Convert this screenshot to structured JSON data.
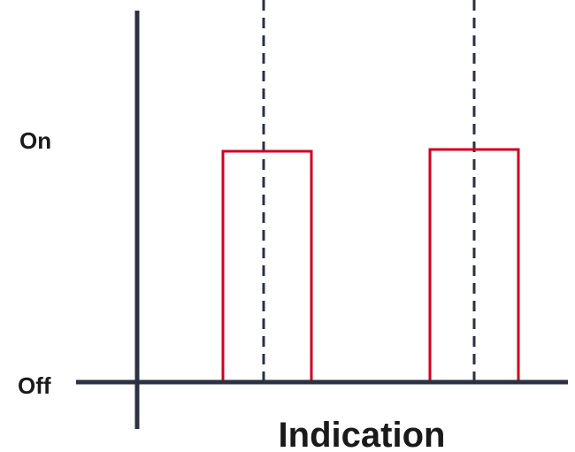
{
  "diagram": {
    "y_high_label": "On",
    "y_low_label": "Off",
    "x_label": "Indication"
  },
  "colors": {
    "axis": "#2b3142",
    "pulse": "#d0021b",
    "marker": "#2b3142",
    "text": "#1a1a1a"
  },
  "chart_data": {
    "type": "line",
    "title": "",
    "xlabel": "Indication",
    "ylabel": "",
    "levels": [
      "Off",
      "On"
    ],
    "pulses": [
      {
        "start": 1,
        "end": 2
      },
      {
        "start": 3,
        "end": 4
      }
    ],
    "markers": [
      1.5,
      3.5
    ]
  }
}
